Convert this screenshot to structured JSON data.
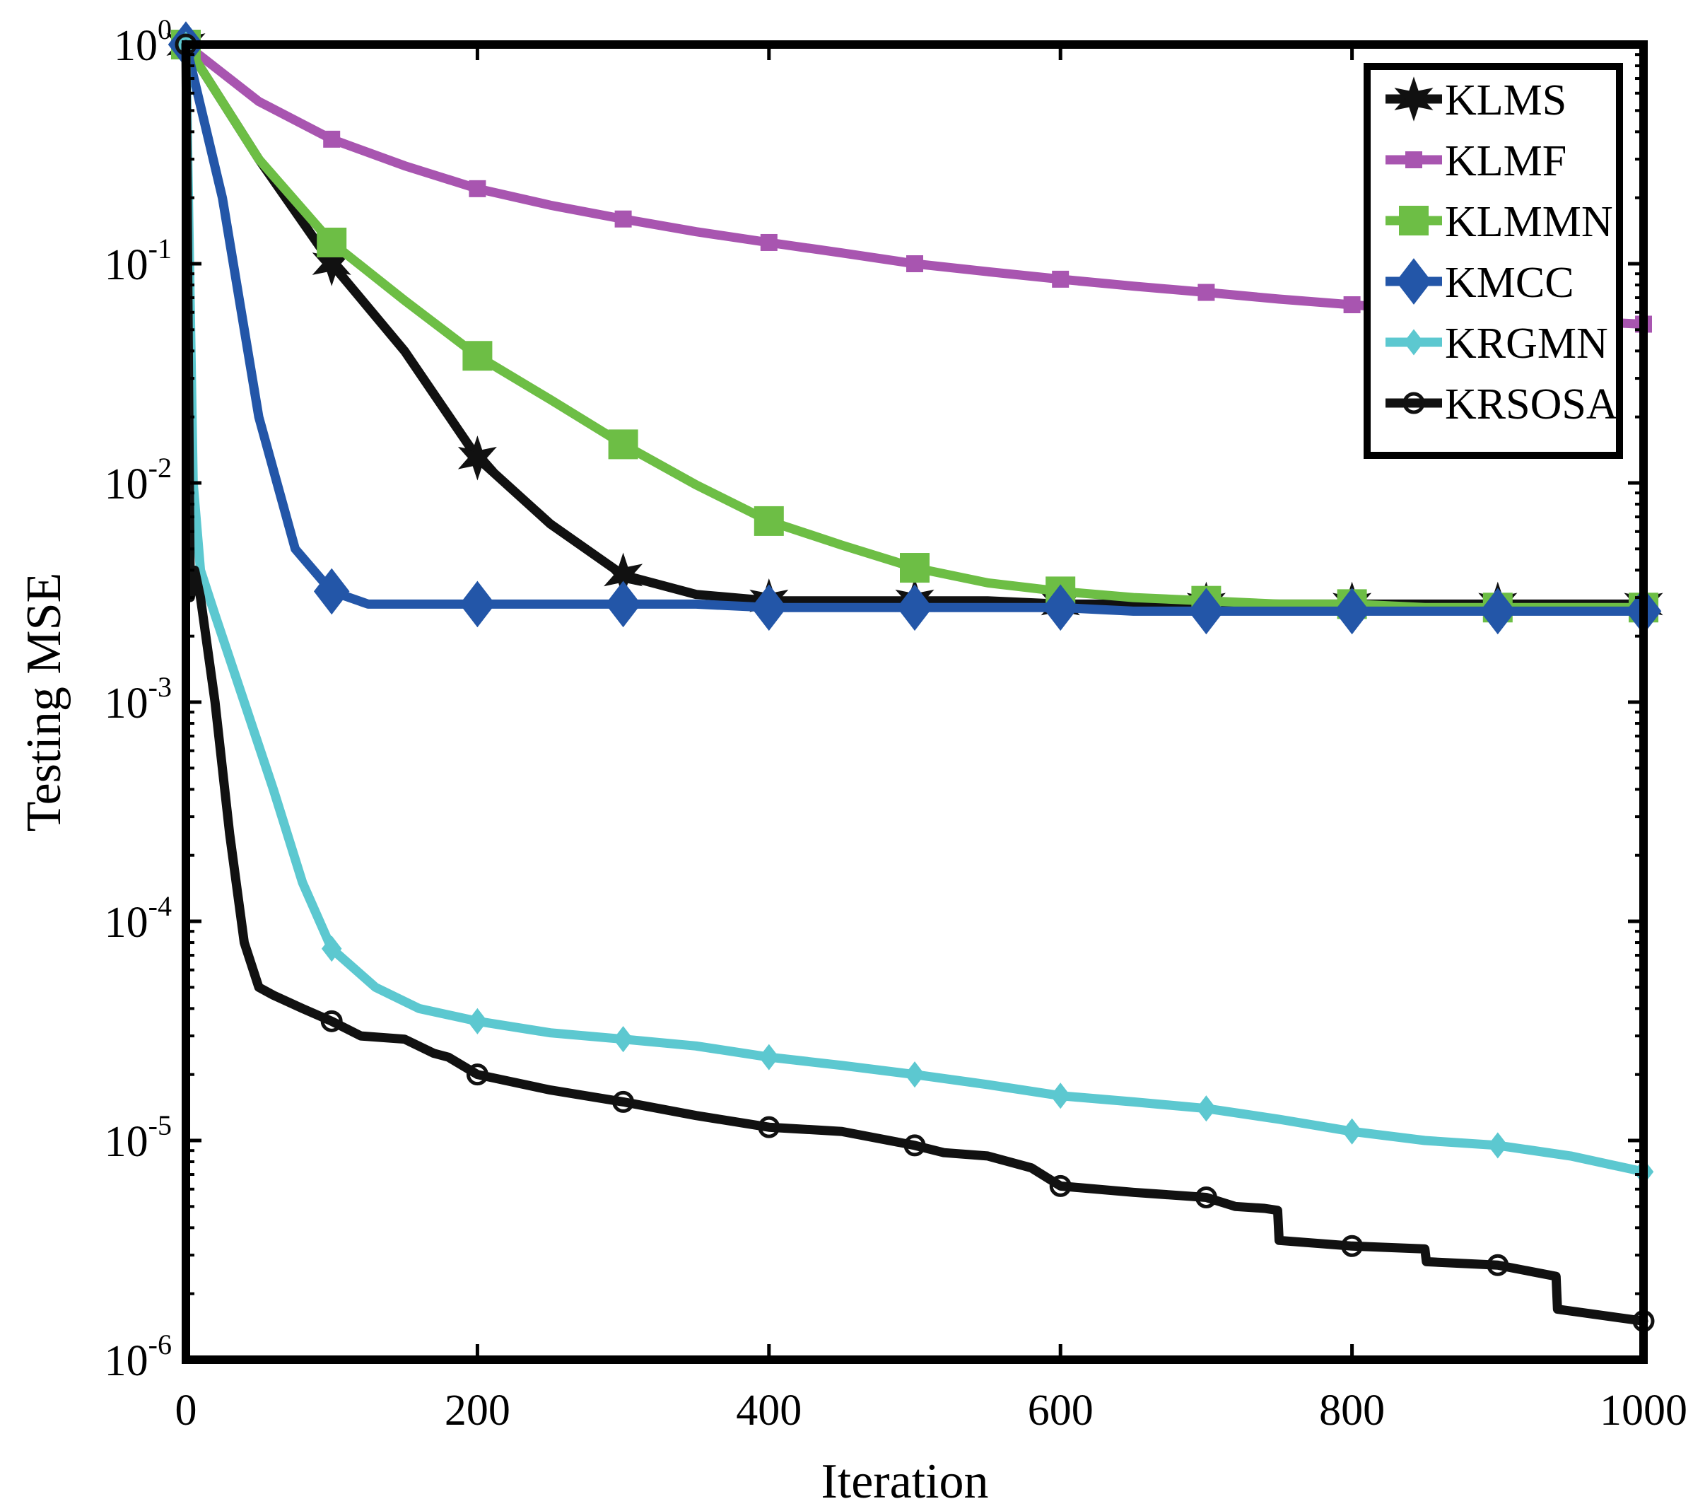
{
  "chart_data": {
    "type": "line",
    "title": "",
    "xlabel": "Iteration",
    "ylabel": "Testing MSE",
    "xlim": [
      0,
      1000
    ],
    "ylim": [
      1e-06,
      1
    ],
    "yscale": "log",
    "grid": false,
    "legend_position": "top-right",
    "x_ticks": [
      {
        "value": 0,
        "label": "0"
      },
      {
        "value": 200,
        "label": "200"
      },
      {
        "value": 400,
        "label": "400"
      },
      {
        "value": 600,
        "label": "600"
      },
      {
        "value": 800,
        "label": "800"
      },
      {
        "value": 1000,
        "label": "1000"
      }
    ],
    "y_ticks": [
      {
        "value": 1,
        "base": "10",
        "exp": "0"
      },
      {
        "value": 0.1,
        "base": "10",
        "exp": "-1"
      },
      {
        "value": 0.01,
        "base": "10",
        "exp": "-2"
      },
      {
        "value": 0.001,
        "base": "10",
        "exp": "-3"
      },
      {
        "value": 0.0001,
        "base": "10",
        "exp": "-4"
      },
      {
        "value": 1e-05,
        "base": "10",
        "exp": "-5"
      },
      {
        "value": 1e-06,
        "base": "10",
        "exp": "-6"
      }
    ],
    "series": [
      {
        "name": "KLMS",
        "color": "#111111",
        "marker": "star",
        "markersize": 22,
        "x": [
          0,
          50,
          100,
          150,
          200,
          250,
          300,
          350,
          400,
          450,
          500,
          550,
          600,
          650,
          700,
          750,
          800,
          850,
          900,
          950,
          1000
        ],
        "y": [
          1,
          0.3,
          0.1,
          0.04,
          0.013,
          0.0065,
          0.0038,
          0.0031,
          0.0029,
          0.0029,
          0.0029,
          0.0029,
          0.0028,
          0.0028,
          0.0028,
          0.0028,
          0.0028,
          0.0028,
          0.0028,
          0.0028,
          0.0028
        ],
        "marker_x": [
          0,
          100,
          200,
          300,
          400,
          500,
          600,
          700,
          800,
          900,
          1000
        ]
      },
      {
        "name": "KLMF",
        "color": "#A855B0",
        "marker": "square",
        "markersize": 11,
        "x": [
          0,
          50,
          100,
          150,
          200,
          250,
          300,
          350,
          400,
          450,
          500,
          550,
          600,
          650,
          700,
          750,
          800,
          850,
          900,
          950,
          1000
        ],
        "y": [
          1,
          0.55,
          0.37,
          0.28,
          0.22,
          0.185,
          0.16,
          0.14,
          0.125,
          0.112,
          0.1,
          0.092,
          0.085,
          0.079,
          0.074,
          0.069,
          0.065,
          0.061,
          0.058,
          0.055,
          0.053
        ],
        "marker_x": [
          0,
          100,
          200,
          300,
          400,
          500,
          600,
          700,
          800,
          900,
          1000
        ]
      },
      {
        "name": "KLMMN",
        "color": "#6DBE45",
        "marker": "square",
        "markersize": 20,
        "x": [
          0,
          50,
          100,
          150,
          200,
          250,
          300,
          350,
          400,
          450,
          500,
          550,
          600,
          650,
          700,
          750,
          800,
          850,
          900,
          950,
          1000
        ],
        "y": [
          1,
          0.3,
          0.125,
          0.068,
          0.038,
          0.024,
          0.015,
          0.0098,
          0.0067,
          0.0052,
          0.0041,
          0.0035,
          0.0032,
          0.003,
          0.0029,
          0.0028,
          0.0028,
          0.0027,
          0.0027,
          0.0027,
          0.0027
        ],
        "marker_x": [
          0,
          100,
          200,
          300,
          400,
          500,
          600,
          700,
          800,
          900,
          1000
        ]
      },
      {
        "name": "KMCC",
        "color": "#2356A8",
        "marker": "diamond",
        "markersize": 24,
        "x": [
          0,
          25,
          50,
          75,
          100,
          125,
          150,
          200,
          250,
          300,
          350,
          400,
          450,
          500,
          550,
          600,
          650,
          700,
          750,
          800,
          850,
          900,
          950,
          1000
        ],
        "y": [
          1,
          0.2,
          0.02,
          0.005,
          0.0032,
          0.0028,
          0.0028,
          0.0028,
          0.0028,
          0.0028,
          0.0028,
          0.0027,
          0.0027,
          0.0027,
          0.0027,
          0.0027,
          0.0026,
          0.0026,
          0.0026,
          0.0026,
          0.0026,
          0.0026,
          0.0026,
          0.0026
        ],
        "marker_x": [
          0,
          100,
          200,
          300,
          400,
          500,
          600,
          700,
          800,
          900,
          1000
        ]
      },
      {
        "name": "KRGMN",
        "color": "#5CC8D0",
        "marker": "diamond",
        "markersize": 13,
        "x": [
          0,
          5,
          10,
          20,
          40,
          60,
          80,
          100,
          130,
          160,
          200,
          250,
          300,
          350,
          400,
          450,
          500,
          550,
          600,
          650,
          700,
          750,
          800,
          850,
          900,
          950,
          1000
        ],
        "y": [
          1,
          0.01,
          0.004,
          0.0025,
          0.001,
          0.0004,
          0.00015,
          7.5e-05,
          5e-05,
          4e-05,
          3.5e-05,
          3.1e-05,
          2.9e-05,
          2.7e-05,
          2.4e-05,
          2.2e-05,
          2e-05,
          1.8e-05,
          1.6e-05,
          1.5e-05,
          1.4e-05,
          1.25e-05,
          1.1e-05,
          1e-05,
          9.5e-06,
          8.5e-06,
          7.2e-06
        ],
        "marker_x": [
          0,
          100,
          200,
          300,
          400,
          500,
          600,
          700,
          800,
          900,
          1000
        ]
      },
      {
        "name": "KRSOSA",
        "color": "#111111",
        "marker": "circle",
        "markersize": 13,
        "x": [
          0,
          3,
          6,
          10,
          20,
          30,
          40,
          50,
          60,
          80,
          100,
          120,
          150,
          170,
          180,
          200,
          250,
          300,
          350,
          400,
          450,
          500,
          520,
          550,
          580,
          600,
          650,
          700,
          720,
          740,
          749,
          750,
          800,
          850,
          851,
          900,
          940,
          941,
          1000
        ],
        "y": [
          1,
          0.003,
          0.004,
          0.003,
          0.001,
          0.00025,
          8e-05,
          5e-05,
          4.6e-05,
          4e-05,
          3.5e-05,
          3e-05,
          2.9e-05,
          2.5e-05,
          2.4e-05,
          2e-05,
          1.7e-05,
          1.5e-05,
          1.3e-05,
          1.15e-05,
          1.1e-05,
          9.5e-06,
          8.8e-06,
          8.5e-06,
          7.5e-06,
          6.2e-06,
          5.8e-06,
          5.5e-06,
          5e-06,
          4.9e-06,
          4.8e-06,
          3.5e-06,
          3.3e-06,
          3.2e-06,
          2.8e-06,
          2.7e-06,
          2.4e-06,
          1.7e-06,
          1.5e-06
        ],
        "marker_x": [
          0,
          100,
          200,
          300,
          400,
          500,
          600,
          700,
          800,
          900,
          1000
        ]
      }
    ]
  }
}
